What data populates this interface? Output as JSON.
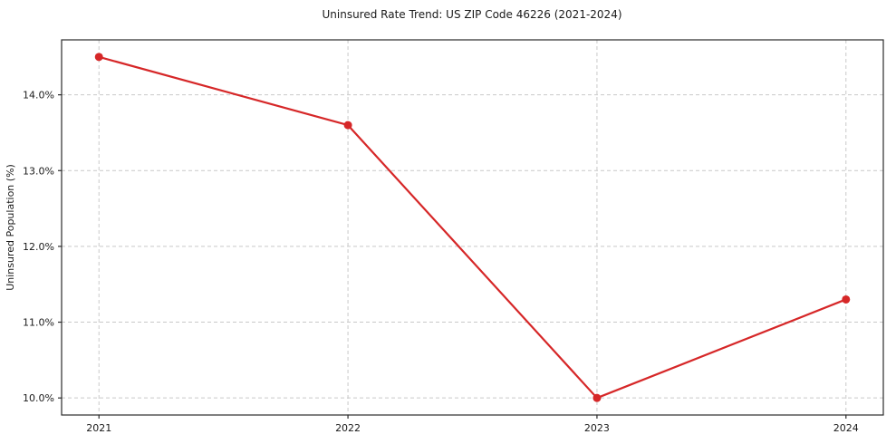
{
  "chart": {
    "title": "Uninsured Rate Trend: US ZIP Code 46226 (2021-2024)"
  },
  "chart_data": {
    "type": "line",
    "title": "Uninsured Rate Trend: US ZIP Code 46226 (2021-2024)",
    "xlabel": "",
    "ylabel": "Uninsured Population (%)",
    "x": [
      2021,
      2022,
      2023,
      2024
    ],
    "values": [
      14.5,
      13.6,
      10.0,
      11.3
    ],
    "series_name": "Uninsured Population (%)",
    "xlim": [
      2020.85,
      2024.15
    ],
    "ylim": [
      9.775,
      14.725
    ],
    "xticks": [
      2021,
      2022,
      2023,
      2024
    ],
    "xtick_labels": [
      "2021",
      "2022",
      "2023",
      "2024"
    ],
    "yticks": [
      10.0,
      11.0,
      12.0,
      13.0,
      14.0
    ],
    "ytick_labels": [
      "10.0%",
      "11.0%",
      "12.0%",
      "13.0%",
      "14.0%"
    ],
    "grid": true,
    "grid_style": "dashed",
    "legend_position": "none",
    "line_color": "#d62728",
    "marker": "circle",
    "grid_color": "#c9c9c9",
    "spine_color": "#2b2b2b",
    "text_color": "#1a1a1a"
  }
}
